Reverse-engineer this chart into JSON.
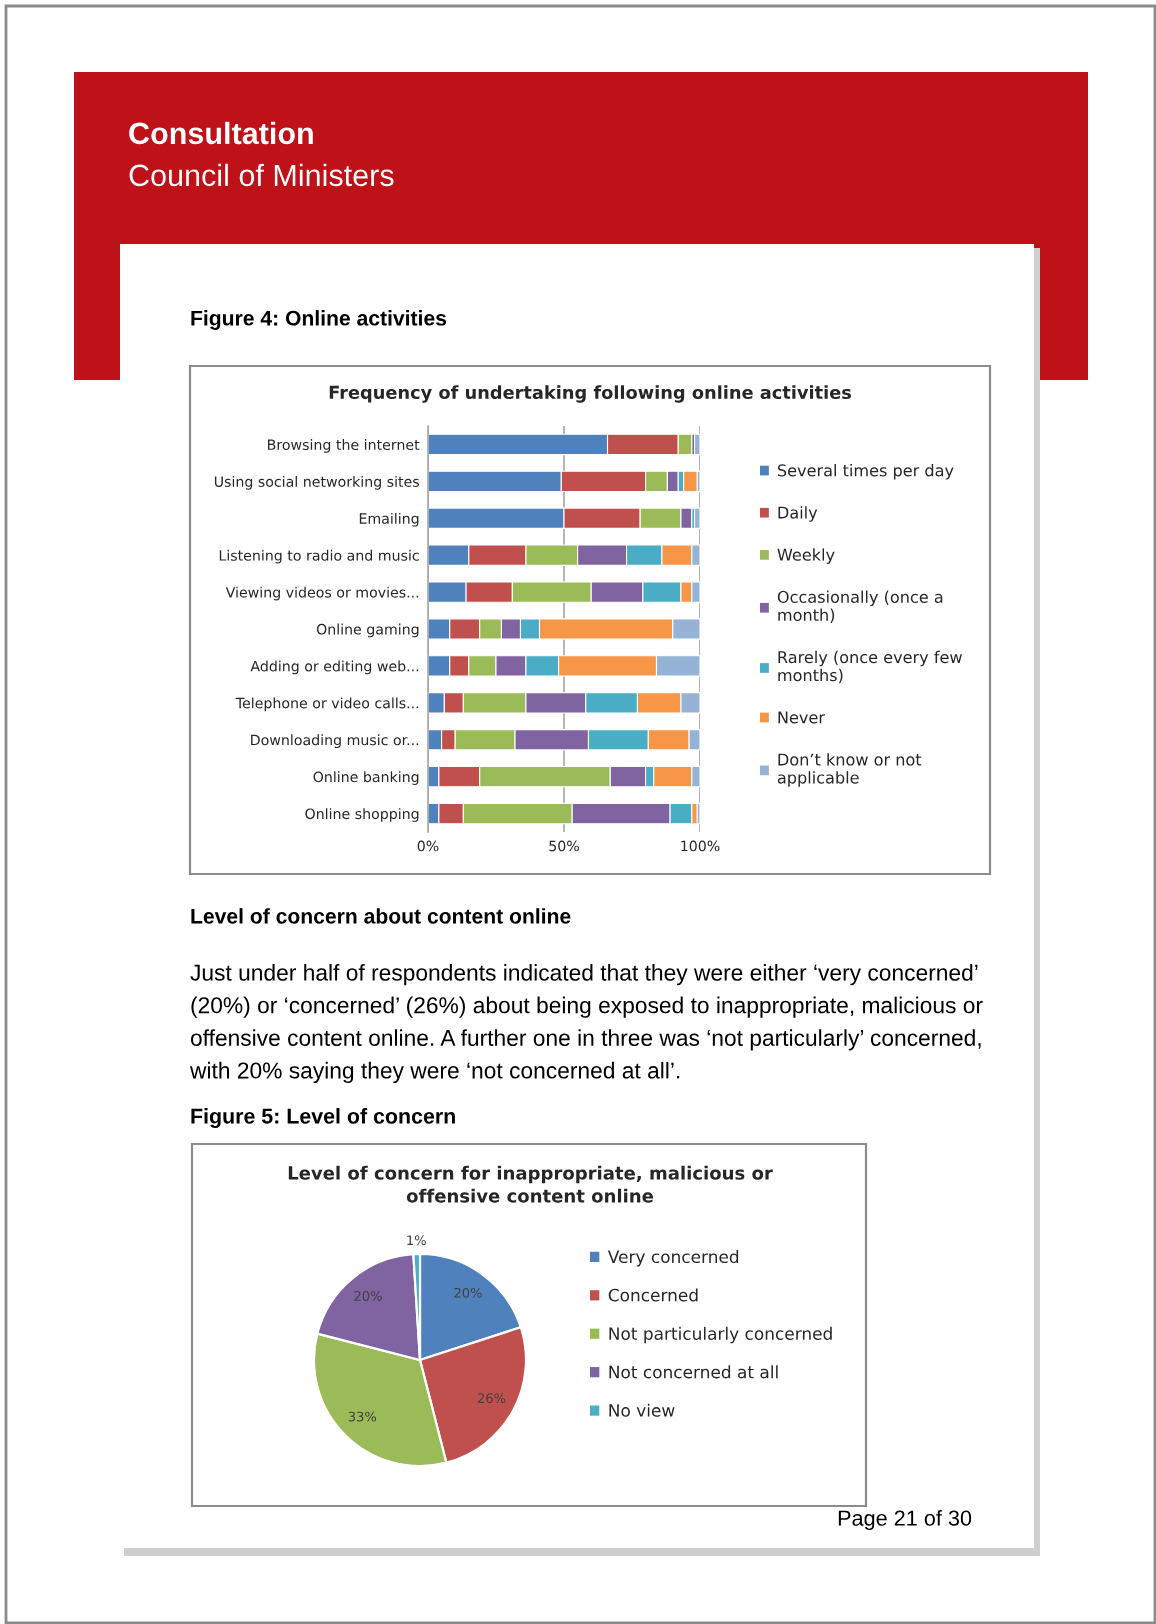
{
  "chart_data": [
    {
      "type": "bar",
      "orientation": "horizontal",
      "stacked": true,
      "title": "Frequency of undertaking following online activities",
      "categories": [
        "Browsing the internet",
        "Using social networking sites",
        "Emailing",
        "Listening to radio and music",
        "Viewing videos or movies...",
        "Online gaming",
        "Adding or editing web...",
        "Telephone or video calls...",
        "Downloading music or...",
        "Online banking",
        "Online shopping"
      ],
      "series": [
        {
          "name": "Several times per day",
          "color": "#4F81BD",
          "values": [
            66,
            49,
            50,
            15,
            14,
            8,
            8,
            6,
            5,
            4,
            4
          ]
        },
        {
          "name": "Daily",
          "color": "#C0504D",
          "values": [
            26,
            31,
            28,
            21,
            17,
            11,
            7,
            7,
            5,
            15,
            9
          ]
        },
        {
          "name": "Weekly",
          "color": "#9BBB59",
          "values": [
            5,
            8,
            15,
            19,
            29,
            8,
            10,
            23,
            22,
            48,
            40
          ]
        },
        {
          "name": "Occasionally (once a\nmonth)",
          "color": "#8064A2",
          "values": [
            1,
            4,
            4,
            18,
            19,
            7,
            11,
            22,
            27,
            13,
            36
          ]
        },
        {
          "name": "Rarely (once every few\nmonths)",
          "color": "#4BACC6",
          "values": [
            0,
            2,
            1,
            13,
            14,
            7,
            12,
            19,
            22,
            3,
            8
          ]
        },
        {
          "name": "Never",
          "color": "#F79646",
          "values": [
            0,
            5,
            0,
            11,
            4,
            49,
            36,
            16,
            15,
            14,
            2
          ]
        },
        {
          "name": "Don’t know or not\napplicable",
          "color": "#95B3D7",
          "values": [
            2,
            1,
            2,
            3,
            3,
            10,
            16,
            7,
            4,
            3,
            1
          ]
        }
      ],
      "xlim": [
        0,
        100
      ],
      "xticks": [
        {
          "value": 0,
          "label": "0%"
        },
        {
          "value": 50,
          "label": "50%"
        },
        {
          "value": 100,
          "label": "100%"
        }
      ],
      "grid": "x",
      "legend": "right",
      "annotations": [
        "Consultation",
        "Council of Ministers",
        "Figure 4: Online activities"
      ]
    },
    {
      "type": "pie",
      "title": "Level of concern for inappropriate, malicious or\noffensive content online",
      "categories": [
        "Very concerned",
        "Concerned",
        "Not particularly concerned",
        "Not concerned at all",
        "No view"
      ],
      "values": [
        20,
        26,
        33,
        20,
        1
      ],
      "colors": [
        "#4F81BD",
        "#C0504D",
        "#9BBB59",
        "#8064A2",
        "#4BACC6"
      ],
      "value_labels": [
        "20%",
        "26%",
        "33%",
        "20%",
        "1%"
      ],
      "legend": "right",
      "annotations": [
        "Level of concern about content online",
        "Just under half of respondents indicated that they were either ‘very concerned’\n(20%) or ‘concerned’ (26%) about being exposed to inappropriate, malicious or\noffensive content online. A further one in three was ‘not particularly’ concerned,\nwith 20% saying they were ‘not concerned at all’.",
        "Figure 5: Level of concern",
        "Page 21 of 30"
      ]
    }
  ]
}
